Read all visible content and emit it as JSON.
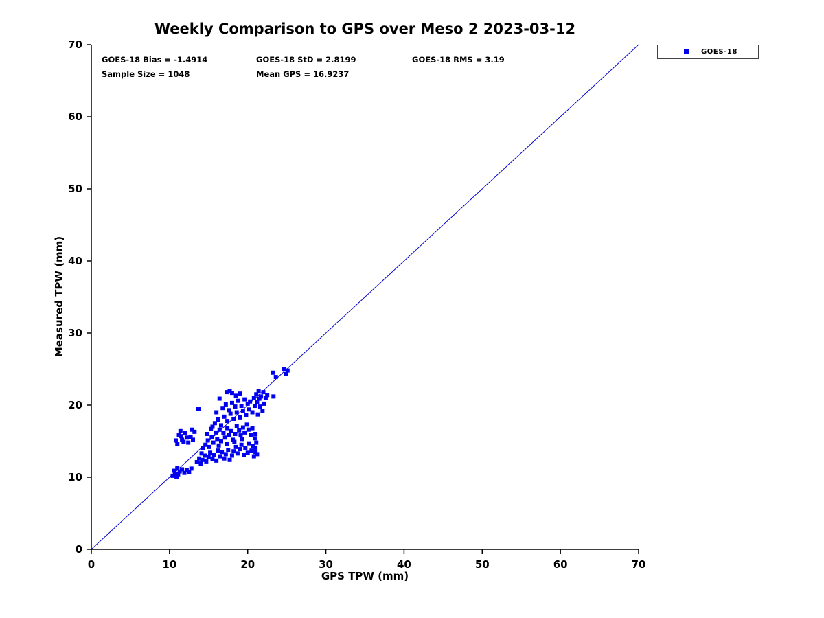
{
  "chart_data": {
    "type": "scatter",
    "title": "Weekly Comparison to GPS over Meso 2 2023-03-12",
    "xlabel": "GPS TPW (mm)",
    "ylabel": "Measured TPW (mm)",
    "xlim": [
      0,
      70
    ],
    "ylim": [
      0,
      70
    ],
    "xticks": [
      0,
      10,
      20,
      30,
      40,
      50,
      60,
      70
    ],
    "yticks": [
      0,
      10,
      20,
      30,
      40,
      50,
      60,
      70
    ],
    "grid": false,
    "stats": {
      "bias": -1.4914,
      "std": 2.8199,
      "rms": 3.19,
      "sample_size": 1048,
      "mean_gps": 16.9237
    },
    "stats_text": {
      "bias": "GOES-18 Bias = -1.4914",
      "std": "GOES-18 StD = 2.8199",
      "rms": "GOES-18 RMS = 3.19",
      "sample_size": "Sample Size = 1048",
      "mean_gps": "Mean GPS = 16.9237"
    },
    "legend": {
      "position": "top-right-outside",
      "entries": [
        {
          "label": "GOES-18",
          "marker": "square",
          "color": "#0000EE"
        }
      ]
    },
    "reference_line": {
      "from": [
        0,
        0
      ],
      "to": [
        70,
        70
      ],
      "color": "#0000CC"
    },
    "marker": {
      "shape": "square",
      "color": "#0000EE",
      "size": 6
    },
    "series": [
      {
        "name": "GOES-18",
        "points": [
          [
            10.4,
            10.2
          ],
          [
            10.7,
            10.5
          ],
          [
            10.9,
            10.1
          ],
          [
            11.1,
            10.4
          ],
          [
            11.3,
            10.8
          ],
          [
            11.6,
            11.1
          ],
          [
            11.9,
            10.6
          ],
          [
            12.2,
            11.0
          ],
          [
            12.5,
            10.7
          ],
          [
            11.0,
            11.3
          ],
          [
            10.6,
            10.9
          ],
          [
            12.8,
            11.2
          ],
          [
            10.8,
            15.1
          ],
          [
            11.0,
            14.6
          ],
          [
            11.2,
            15.9
          ],
          [
            11.4,
            16.4
          ],
          [
            11.6,
            15.2
          ],
          [
            11.8,
            14.9
          ],
          [
            12.0,
            16.1
          ],
          [
            12.2,
            15.5
          ],
          [
            12.4,
            14.8
          ],
          [
            12.7,
            15.6
          ],
          [
            13.0,
            15.2
          ],
          [
            13.2,
            16.3
          ],
          [
            11.5,
            15.7
          ],
          [
            12.9,
            16.6
          ],
          [
            13.7,
            19.5
          ],
          [
            13.5,
            12.1
          ],
          [
            13.8,
            12.6
          ],
          [
            14.0,
            11.9
          ],
          [
            14.2,
            12.4
          ],
          [
            14.5,
            13.0
          ],
          [
            14.7,
            12.2
          ],
          [
            15.0,
            12.8
          ],
          [
            15.2,
            13.4
          ],
          [
            15.5,
            12.5
          ],
          [
            15.7,
            13.1
          ],
          [
            16.0,
            12.3
          ],
          [
            16.2,
            13.7
          ],
          [
            16.5,
            12.9
          ],
          [
            16.7,
            13.5
          ],
          [
            17.0,
            12.6
          ],
          [
            17.2,
            13.2
          ],
          [
            17.5,
            13.8
          ],
          [
            17.7,
            12.4
          ],
          [
            18.0,
            13.0
          ],
          [
            18.2,
            13.6
          ],
          [
            18.5,
            14.2
          ],
          [
            18.7,
            13.3
          ],
          [
            19.0,
            13.9
          ],
          [
            19.2,
            14.5
          ],
          [
            19.5,
            13.1
          ],
          [
            19.7,
            14.0
          ],
          [
            20.0,
            13.4
          ],
          [
            20.2,
            14.7
          ],
          [
            20.5,
            13.7
          ],
          [
            20.7,
            14.3
          ],
          [
            21.0,
            13.5
          ],
          [
            21.0,
            14.1
          ],
          [
            21.1,
            14.8
          ],
          [
            21.2,
            13.2
          ],
          [
            20.9,
            15.4
          ],
          [
            21.0,
            16.0
          ],
          [
            20.8,
            12.9
          ],
          [
            14.1,
            13.3
          ],
          [
            14.3,
            14.0
          ],
          [
            14.6,
            14.5
          ],
          [
            14.9,
            15.1
          ],
          [
            15.1,
            14.2
          ],
          [
            15.4,
            15.6
          ],
          [
            15.6,
            14.8
          ],
          [
            15.9,
            16.2
          ],
          [
            16.1,
            15.3
          ],
          [
            16.4,
            16.6
          ],
          [
            16.6,
            15.0
          ],
          [
            16.9,
            16.1
          ],
          [
            17.1,
            15.5
          ],
          [
            17.4,
            16.8
          ],
          [
            17.6,
            15.9
          ],
          [
            17.9,
            16.4
          ],
          [
            18.1,
            15.2
          ],
          [
            18.4,
            16.0
          ],
          [
            18.6,
            17.1
          ],
          [
            18.9,
            16.5
          ],
          [
            19.1,
            15.8
          ],
          [
            19.4,
            16.9
          ],
          [
            19.6,
            16.2
          ],
          [
            19.9,
            17.3
          ],
          [
            20.1,
            16.6
          ],
          [
            14.8,
            16.0
          ],
          [
            15.3,
            16.7
          ],
          [
            16.3,
            14.4
          ],
          [
            17.3,
            14.6
          ],
          [
            18.3,
            14.9
          ],
          [
            19.3,
            15.3
          ],
          [
            20.4,
            15.9
          ],
          [
            20.6,
            16.8
          ],
          [
            15.8,
            17.5
          ],
          [
            16.2,
            18.0
          ],
          [
            16.6,
            17.2
          ],
          [
            17.0,
            18.4
          ],
          [
            17.4,
            17.8
          ],
          [
            17.8,
            18.8
          ],
          [
            18.2,
            18.1
          ],
          [
            18.6,
            19.0
          ],
          [
            19.0,
            18.3
          ],
          [
            19.4,
            19.2
          ],
          [
            19.8,
            18.6
          ],
          [
            20.2,
            19.4
          ],
          [
            16.8,
            19.6
          ],
          [
            17.2,
            20.1
          ],
          [
            17.6,
            19.3
          ],
          [
            18.0,
            20.3
          ],
          [
            18.4,
            19.8
          ],
          [
            18.8,
            20.6
          ],
          [
            19.2,
            19.9
          ],
          [
            19.6,
            20.8
          ],
          [
            20.0,
            20.2
          ],
          [
            16.4,
            20.9
          ],
          [
            17.3,
            21.8
          ],
          [
            17.7,
            22.0
          ],
          [
            18.0,
            21.7
          ],
          [
            18.5,
            21.3
          ],
          [
            19.0,
            21.6
          ],
          [
            20.3,
            20.5
          ],
          [
            15.5,
            17.0
          ],
          [
            16.0,
            19.0
          ],
          [
            20.8,
            21.0
          ],
          [
            21.1,
            21.5
          ],
          [
            21.4,
            22.0
          ],
          [
            21.7,
            21.2
          ],
          [
            22.0,
            21.8
          ],
          [
            22.3,
            21.0
          ],
          [
            21.2,
            20.4
          ],
          [
            21.6,
            19.8
          ],
          [
            22.1,
            20.2
          ],
          [
            21.9,
            19.2
          ],
          [
            21.3,
            18.7
          ],
          [
            20.6,
            19.0
          ],
          [
            22.5,
            21.4
          ],
          [
            23.3,
            21.2
          ],
          [
            21.5,
            20.9
          ],
          [
            20.9,
            19.9
          ],
          [
            23.2,
            24.5
          ],
          [
            23.6,
            23.9
          ],
          [
            24.6,
            25.0
          ],
          [
            24.9,
            24.3
          ],
          [
            25.1,
            24.8
          ]
        ]
      }
    ]
  }
}
